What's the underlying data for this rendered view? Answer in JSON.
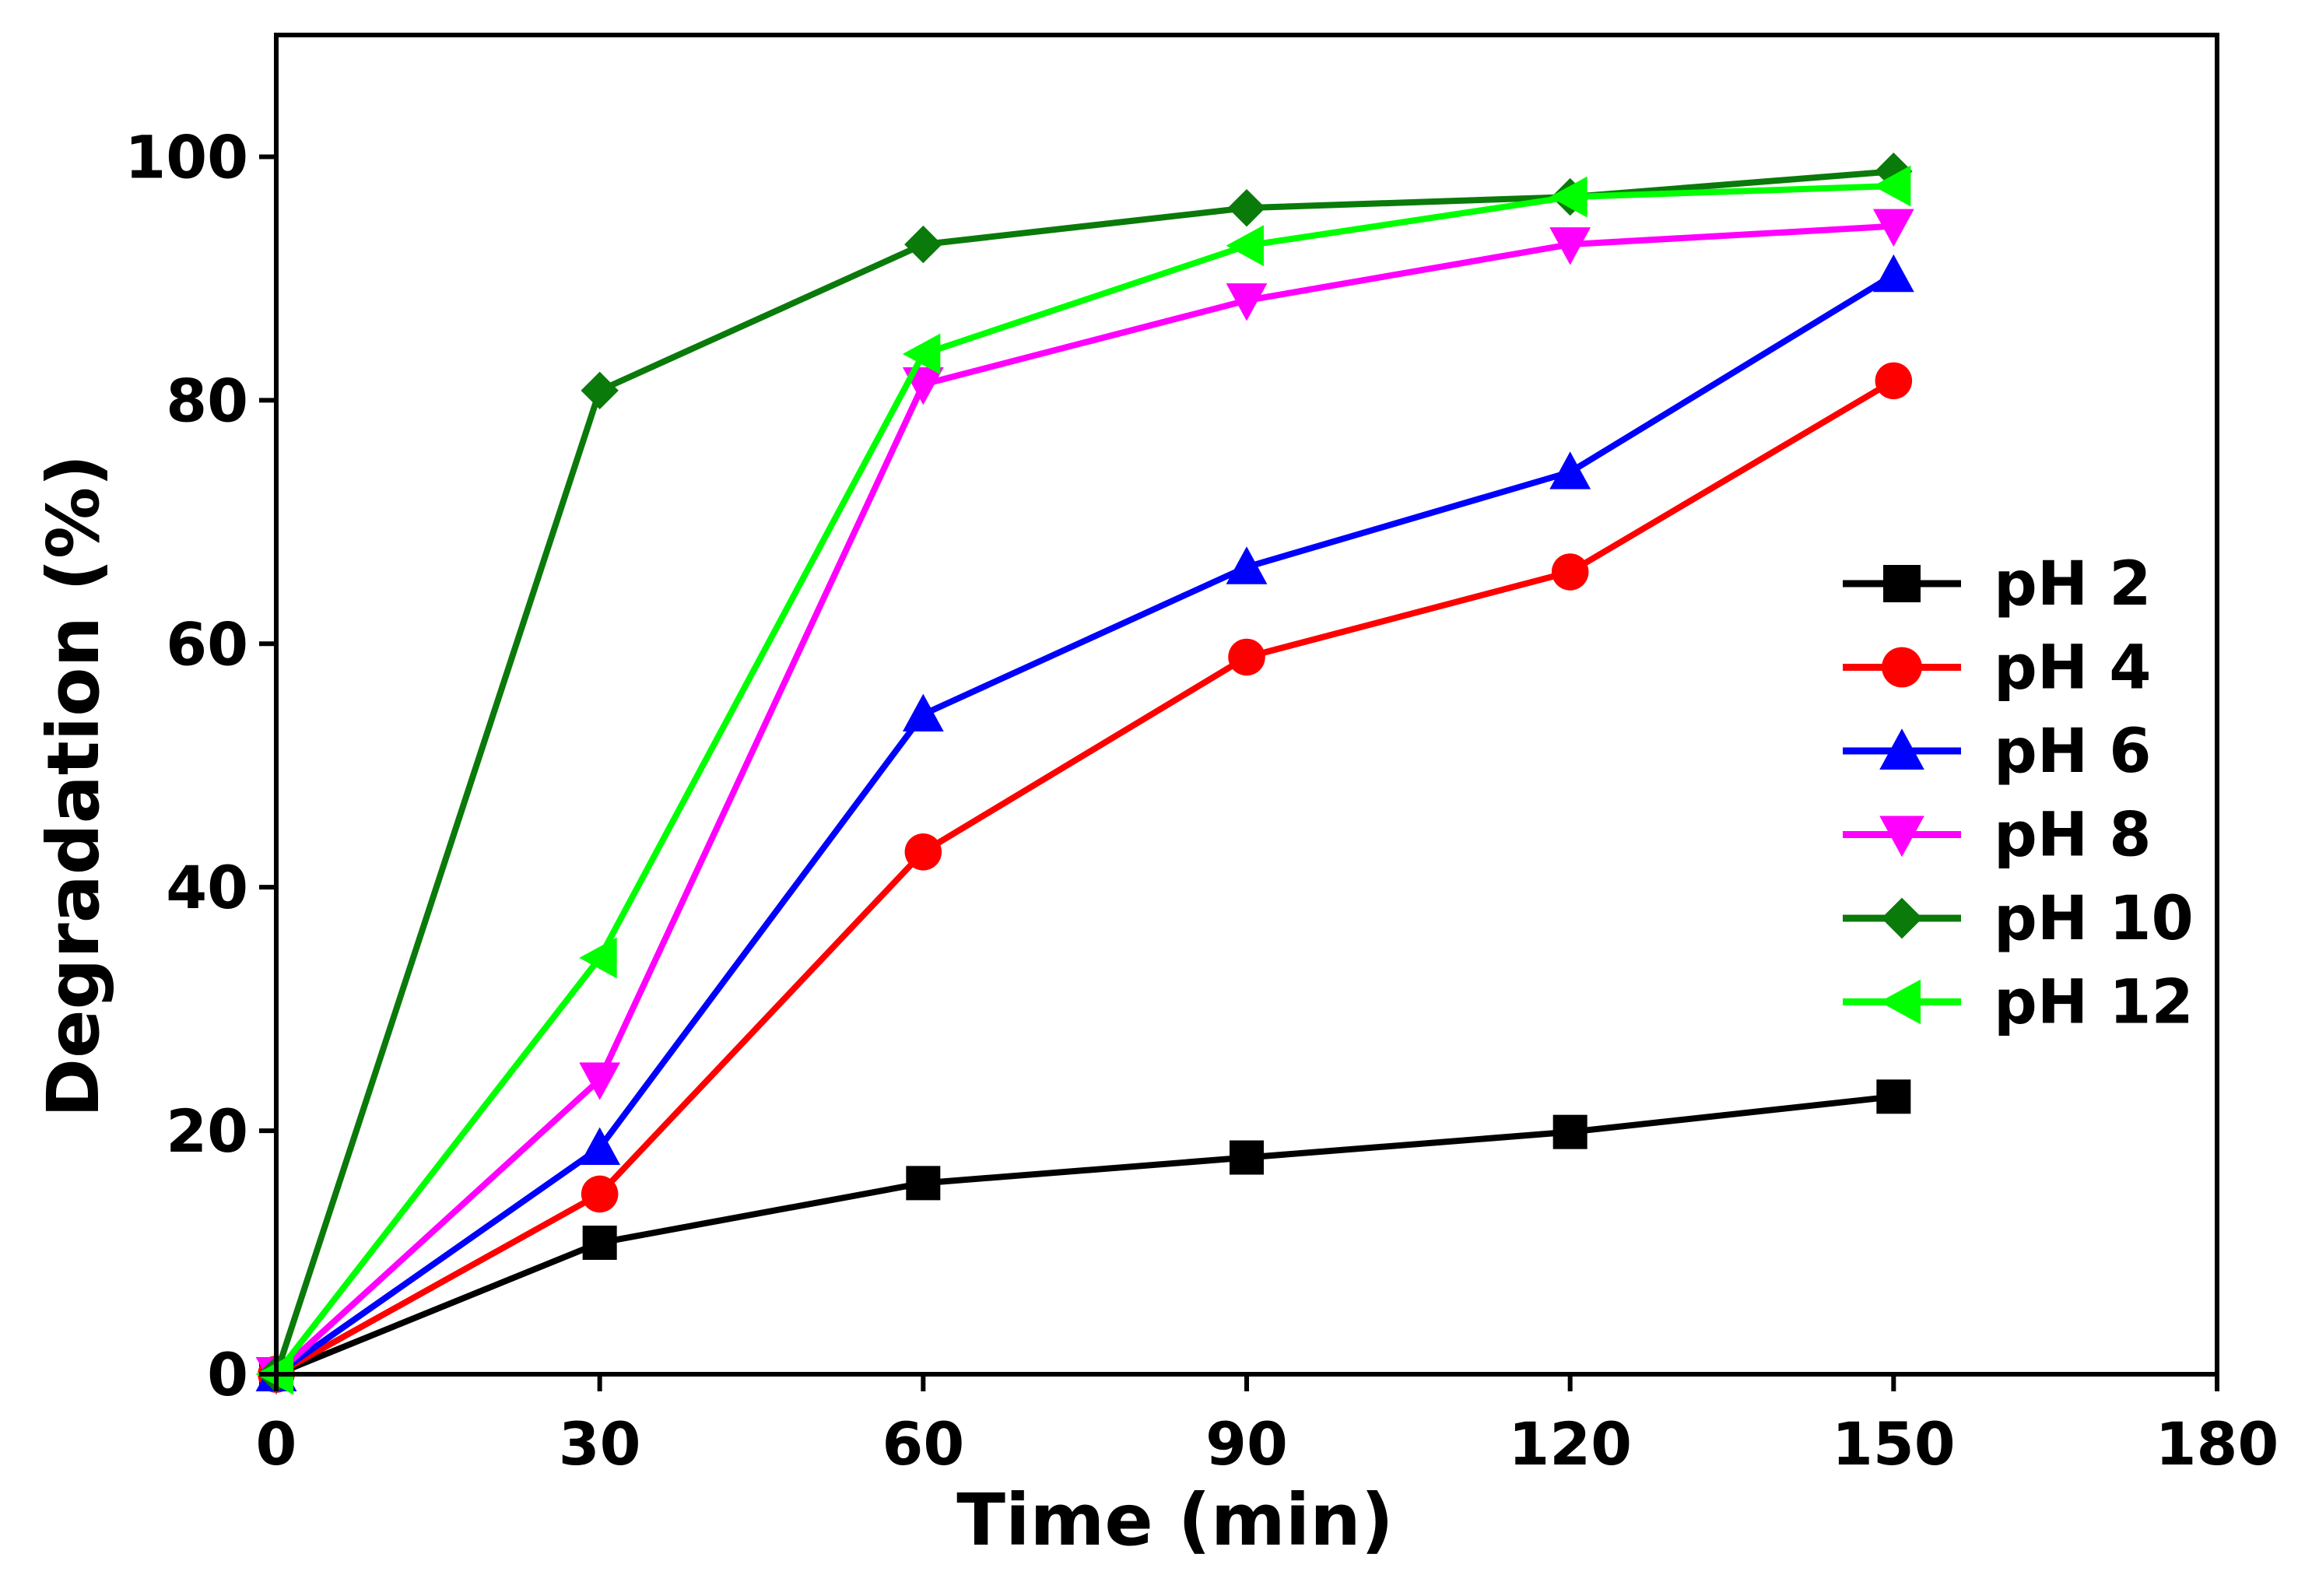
{
  "chart_data": {
    "type": "line",
    "title": "",
    "xlabel": "Time (min)",
    "ylabel": "Degradation (%)",
    "xlim": [
      0,
      180
    ],
    "ylim": [
      0,
      110
    ],
    "xticks": [
      0,
      30,
      60,
      90,
      120,
      150,
      180
    ],
    "yticks": [
      0,
      20,
      40,
      60,
      80,
      100
    ],
    "grid": false,
    "legend_position": "right",
    "x": [
      0,
      30,
      60,
      90,
      120,
      150
    ],
    "series": [
      {
        "name": "pH 2",
        "color": "#000000",
        "marker": "square",
        "values": [
          0,
          10.8,
          15.7,
          17.8,
          19.9,
          22.8
        ]
      },
      {
        "name": "pH 4",
        "color": "#ff0000",
        "marker": "circle",
        "values": [
          0,
          14.8,
          42.9,
          58.9,
          65.9,
          81.6
        ]
      },
      {
        "name": "pH 6",
        "color": "#0000ff",
        "marker": "triangle-up",
        "values": [
          0,
          18.6,
          54.2,
          66.3,
          74.1,
          90.3
        ]
      },
      {
        "name": "pH 8",
        "color": "#ff00ff",
        "marker": "triangle-down",
        "values": [
          0,
          24.2,
          81.3,
          88.2,
          92.8,
          94.3
        ]
      },
      {
        "name": "pH 10",
        "color": "#0a7a0a",
        "marker": "diamond",
        "values": [
          0,
          80.8,
          92.8,
          95.8,
          96.7,
          98.8
        ]
      },
      {
        "name": "pH 12",
        "color": "#00ff00",
        "marker": "triangle-left",
        "values": [
          0,
          34.2,
          83.8,
          92.7,
          96.7,
          97.6
        ]
      }
    ]
  }
}
